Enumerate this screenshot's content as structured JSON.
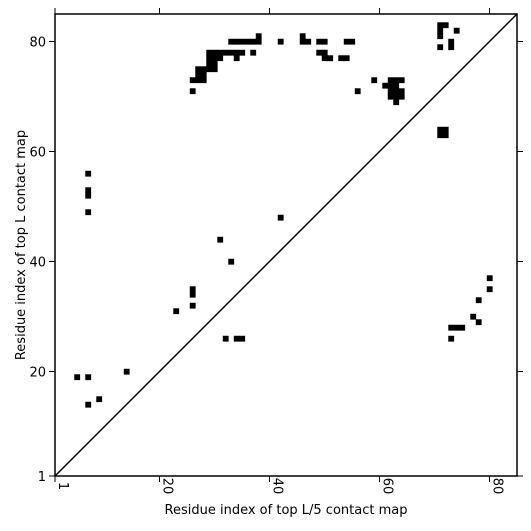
{
  "chart_data": {
    "type": "scatter",
    "title": "",
    "xlabel": "Residue index of top L/5 contact map",
    "ylabel": "Residue index of top L contact map",
    "xlim": [
      1,
      85
    ],
    "ylim": [
      1,
      85
    ],
    "xticks": [
      1,
      20,
      40,
      60,
      80
    ],
    "yticks": [
      1,
      20,
      40,
      60,
      80
    ],
    "diagonal": true,
    "grid": false,
    "colors": {
      "points": "#000000",
      "axes": "#000000",
      "background": "#ffffff"
    },
    "lower_points": [
      [
        5,
        19
      ],
      [
        7,
        19
      ],
      [
        7,
        14
      ],
      [
        9,
        15
      ],
      [
        14,
        20
      ],
      [
        7,
        49
      ],
      [
        7,
        52
      ],
      [
        7,
        53
      ],
      [
        7,
        56
      ],
      [
        23,
        31
      ],
      [
        26,
        32
      ],
      [
        26,
        34
      ],
      [
        26,
        35
      ],
      [
        31,
        44
      ],
      [
        33,
        40
      ],
      [
        42,
        48
      ],
      [
        32,
        26
      ],
      [
        34,
        26
      ],
      [
        35,
        26
      ],
      [
        71,
        63
      ],
      [
        71,
        64
      ],
      [
        72,
        63
      ],
      [
        72,
        64
      ],
      [
        73,
        26
      ],
      [
        73,
        28
      ],
      [
        74,
        28
      ],
      [
        75,
        28
      ],
      [
        77,
        30
      ],
      [
        78,
        29
      ],
      [
        78,
        33
      ],
      [
        80,
        35
      ],
      [
        80,
        37
      ]
    ],
    "upper_points": [
      [
        26,
        71
      ],
      [
        26,
        73
      ],
      [
        27,
        73
      ],
      [
        27,
        74
      ],
      [
        28,
        73
      ],
      [
        28,
        74
      ],
      [
        28,
        75
      ],
      [
        27,
        75
      ],
      [
        29,
        75
      ],
      [
        29,
        76
      ],
      [
        29,
        77
      ],
      [
        29,
        78
      ],
      [
        30,
        75
      ],
      [
        30,
        76
      ],
      [
        30,
        77
      ],
      [
        30,
        78
      ],
      [
        31,
        77
      ],
      [
        31,
        78
      ],
      [
        32,
        78
      ],
      [
        33,
        78
      ],
      [
        34,
        78
      ],
      [
        35,
        78
      ],
      [
        34,
        77
      ],
      [
        33,
        80
      ],
      [
        34,
        80
      ],
      [
        35,
        80
      ],
      [
        36,
        80
      ],
      [
        37,
        80
      ],
      [
        37,
        78
      ],
      [
        38,
        80
      ],
      [
        38,
        81
      ],
      [
        42,
        80
      ],
      [
        46,
        80
      ],
      [
        46,
        81
      ],
      [
        47,
        80
      ],
      [
        49,
        78
      ],
      [
        49,
        80
      ],
      [
        50,
        78
      ],
      [
        50,
        80
      ],
      [
        50,
        77
      ],
      [
        51,
        77
      ],
      [
        53,
        77
      ],
      [
        54,
        77
      ],
      [
        54,
        80
      ],
      [
        55,
        80
      ],
      [
        56,
        71
      ],
      [
        59,
        73
      ],
      [
        61,
        72
      ],
      [
        62,
        70
      ],
      [
        62,
        71
      ],
      [
        62,
        72
      ],
      [
        62,
        73
      ],
      [
        63,
        69
      ],
      [
        63,
        70
      ],
      [
        63,
        71
      ],
      [
        63,
        72
      ],
      [
        63,
        73
      ],
      [
        64,
        70
      ],
      [
        64,
        71
      ],
      [
        64,
        73
      ],
      [
        71,
        79
      ],
      [
        71,
        81
      ],
      [
        71,
        82
      ],
      [
        71,
        83
      ],
      [
        72,
        83
      ],
      [
        73,
        79
      ],
      [
        73,
        80
      ],
      [
        74,
        82
      ]
    ]
  }
}
